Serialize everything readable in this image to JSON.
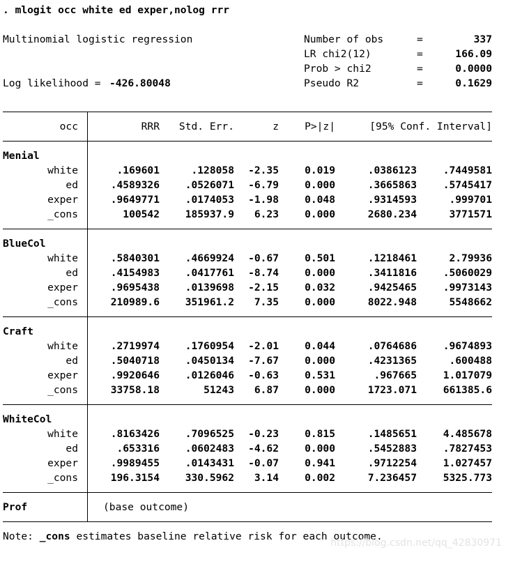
{
  "command": ". mlogit occ white ed exper,nolog rrr",
  "title": "Multinomial logistic regression",
  "loglik_label": "Log likelihood = ",
  "loglik_value": "-426.80048",
  "stats": [
    {
      "label": "Number of obs",
      "eq": "=",
      "value": "337"
    },
    {
      "label": "LR chi2(12)",
      "eq": "=",
      "value": "166.09"
    },
    {
      "label": "Prob > chi2",
      "eq": "=",
      "value": "0.0000"
    },
    {
      "label": "Pseudo R2",
      "eq": "=",
      "value": "0.1629"
    }
  ],
  "header": {
    "var": "occ",
    "rrr": "RRR",
    "se": "Std. Err.",
    "z": "z",
    "p": "P>|z|",
    "ci": "[95% Conf. Interval]"
  },
  "groups": [
    {
      "name": "Menial",
      "rows": [
        {
          "var": "white",
          "rrr": ".169601",
          "se": ".128058",
          "z": "-2.35",
          "p": "0.019",
          "lo": ".0386123",
          "hi": ".7449581"
        },
        {
          "var": "ed",
          "rrr": ".4589326",
          "se": ".0526071",
          "z": "-6.79",
          "p": "0.000",
          "lo": ".3665863",
          "hi": ".5745417"
        },
        {
          "var": "exper",
          "rrr": ".9649771",
          "se": ".0174053",
          "z": "-1.98",
          "p": "0.048",
          "lo": ".9314593",
          "hi": ".999701"
        },
        {
          "var": "_cons",
          "rrr": "100542",
          "se": "185937.9",
          "z": "6.23",
          "p": "0.000",
          "lo": "2680.234",
          "hi": "3771571"
        }
      ]
    },
    {
      "name": "BlueCol",
      "rows": [
        {
          "var": "white",
          "rrr": ".5840301",
          "se": ".4669924",
          "z": "-0.67",
          "p": "0.501",
          "lo": ".1218461",
          "hi": "2.79936"
        },
        {
          "var": "ed",
          "rrr": ".4154983",
          "se": ".0417761",
          "z": "-8.74",
          "p": "0.000",
          "lo": ".3411816",
          "hi": ".5060029"
        },
        {
          "var": "exper",
          "rrr": ".9695438",
          "se": ".0139698",
          "z": "-2.15",
          "p": "0.032",
          "lo": ".9425465",
          "hi": ".9973143"
        },
        {
          "var": "_cons",
          "rrr": "210989.6",
          "se": "351961.2",
          "z": "7.35",
          "p": "0.000",
          "lo": "8022.948",
          "hi": "5548662"
        }
      ]
    },
    {
      "name": "Craft",
      "rows": [
        {
          "var": "white",
          "rrr": ".2719974",
          "se": ".1760954",
          "z": "-2.01",
          "p": "0.044",
          "lo": ".0764686",
          "hi": ".9674893"
        },
        {
          "var": "ed",
          "rrr": ".5040718",
          "se": ".0450134",
          "z": "-7.67",
          "p": "0.000",
          "lo": ".4231365",
          "hi": ".600488"
        },
        {
          "var": "exper",
          "rrr": ".9920646",
          "se": ".0126046",
          "z": "-0.63",
          "p": "0.531",
          "lo": ".967665",
          "hi": "1.017079"
        },
        {
          "var": "_cons",
          "rrr": "33758.18",
          "se": "51243",
          "z": "6.87",
          "p": "0.000",
          "lo": "1723.071",
          "hi": "661385.6"
        }
      ]
    },
    {
      "name": "WhiteCol",
      "rows": [
        {
          "var": "white",
          "rrr": ".8163426",
          "se": ".7096525",
          "z": "-0.23",
          "p": "0.815",
          "lo": ".1485651",
          "hi": "4.485678"
        },
        {
          "var": "ed",
          "rrr": ".653316",
          "se": ".0602483",
          "z": "-4.62",
          "p": "0.000",
          "lo": ".5452883",
          "hi": ".7827453"
        },
        {
          "var": "exper",
          "rrr": ".9989455",
          "se": ".0143431",
          "z": "-0.07",
          "p": "0.941",
          "lo": ".9712254",
          "hi": "1.027457"
        },
        {
          "var": "_cons",
          "rrr": "196.3154",
          "se": "330.5962",
          "z": "3.14",
          "p": "0.002",
          "lo": "7.236457",
          "hi": "5325.773"
        }
      ]
    }
  ],
  "base": {
    "name": "Prof",
    "text": "(base outcome)"
  },
  "note": {
    "prefix": "Note: ",
    "term": "_cons",
    "rest": " estimates baseline relative risk for each outcome."
  },
  "watermark": "https://blog.csdn.net/qq_42830971"
}
